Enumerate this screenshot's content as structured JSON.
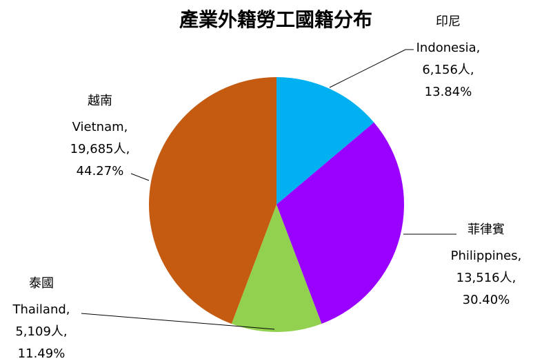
{
  "chart_data": {
    "type": "pie",
    "title": "產業外籍勞工國籍分布",
    "categories": [
      "印尼",
      "菲律賓",
      "泰國",
      "越南"
    ],
    "categories_en": [
      "Indonesia,",
      "Philippines,",
      "Thailand,",
      "Vietnam,"
    ],
    "values": [
      6156,
      13516,
      5109,
      19685
    ],
    "value_labels": [
      "6,156人,",
      "13,516人,",
      "5,109人,",
      "19,685人,"
    ],
    "percentages": [
      13.84,
      30.4,
      11.49,
      44.27
    ],
    "percentage_labels": [
      "13.84%",
      "30.40%",
      "11.49%",
      "44.27%"
    ],
    "colors": [
      "#00b0f0",
      "#9900ff",
      "#92d050",
      "#c55a11"
    ]
  }
}
